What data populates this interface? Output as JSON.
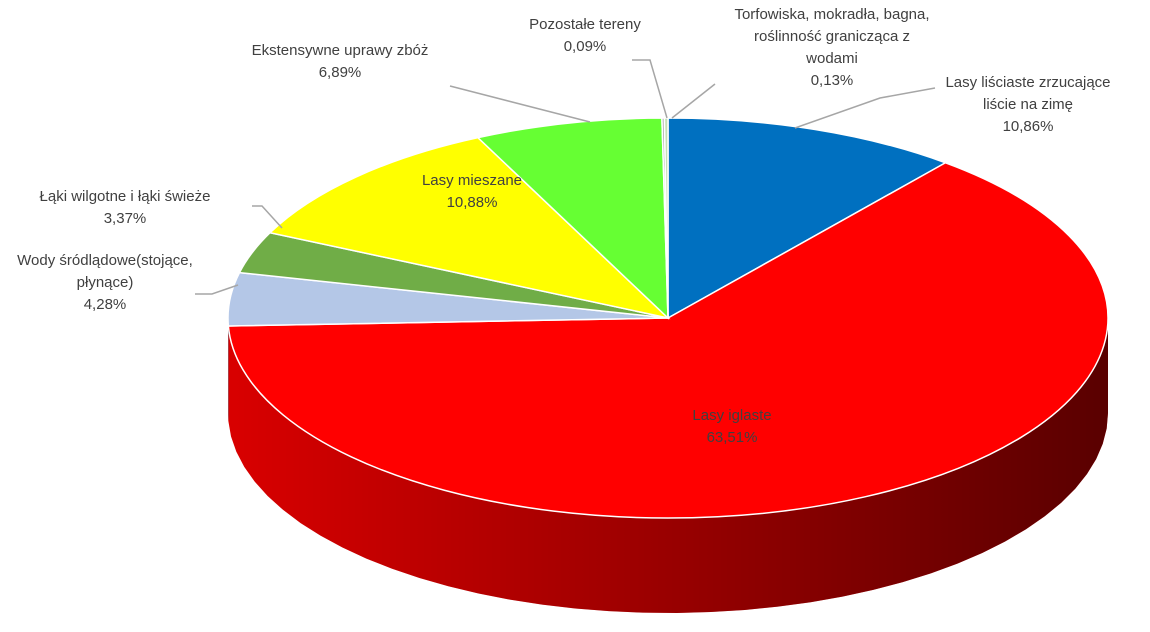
{
  "chart_data": {
    "type": "pie",
    "categories": [
      "Lasy liściaste zrzucające liście na zimę",
      "Lasy iglaste",
      "Wody śródlądowe(stojące, płynące)",
      "Łąki wilgotne i łąki świeże",
      "Lasy mieszane",
      "Ekstensywne uprawy zbóż",
      "Pozostałe tereny",
      "Torfowiska, mokradła, bagna, roślinność granicząca z wodami"
    ],
    "values": [
      10.86,
      63.51,
      4.28,
      3.37,
      10.88,
      6.89,
      0.09,
      0.13
    ],
    "value_labels": [
      "10,86%",
      "63,51%",
      "4,28%",
      "3,37%",
      "10,88%",
      "6,89%",
      "0,09%",
      "0,13%"
    ],
    "colors": [
      "#0070c0",
      "#ff0000",
      "#b4c7e7",
      "#70ad47",
      "#ffff00",
      "#66ff33",
      "#a6a6a6",
      "#c5e0b4"
    ]
  }
}
